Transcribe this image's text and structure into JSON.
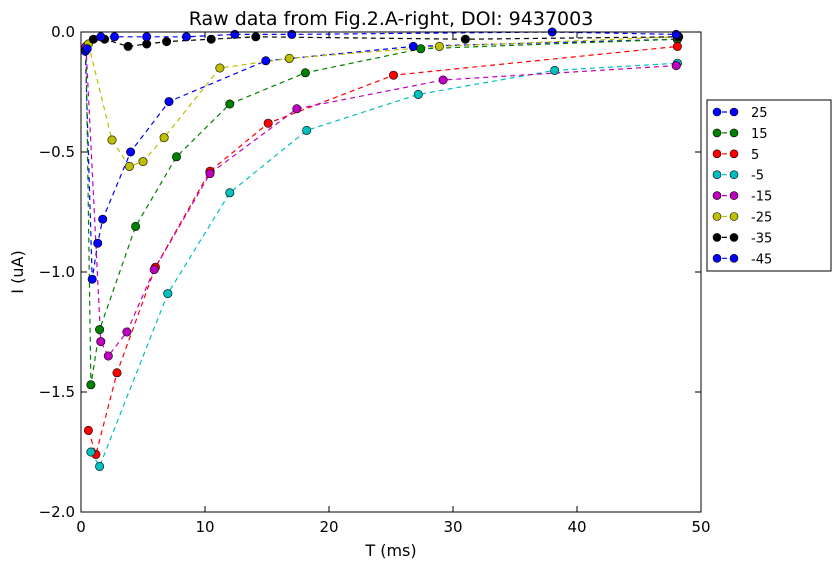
{
  "chart_data": {
    "type": "line",
    "title": "Raw data from Fig.2.A-right, DOI: 9437003",
    "xlabel": "T (ms)",
    "ylabel": "I (uA)",
    "xlim": [
      0,
      50
    ],
    "ylim": [
      -2.0,
      0.0
    ],
    "xticks": [
      0,
      10,
      20,
      30,
      40,
      50
    ],
    "xtick_labels": [
      "0",
      "10",
      "20",
      "30",
      "40",
      "50"
    ],
    "yticks": [
      -2.0,
      -1.5,
      -1.0,
      -0.5,
      0.0
    ],
    "ytick_labels": [
      "−2.0",
      "−1.5",
      "−1.0",
      "−0.5",
      "0.0"
    ],
    "grid": false,
    "legend_position": "right",
    "line_style": "dashed",
    "marker": "circle",
    "series": [
      {
        "name": "25",
        "color": "#0000ff",
        "x": [
          0.35,
          0.9,
          1.35,
          1.75,
          4.0,
          7.1,
          14.9,
          26.8,
          48.1
        ],
        "y": [
          -0.08,
          -1.03,
          -0.88,
          -0.78,
          -0.5,
          -0.29,
          -0.12,
          -0.06,
          -0.03
        ]
      },
      {
        "name": "15",
        "color": "#008000",
        "x": [
          0.4,
          0.8,
          1.5,
          4.4,
          7.7,
          12.0,
          18.1,
          27.4,
          48.1
        ],
        "y": [
          -0.07,
          -1.47,
          -1.24,
          -0.81,
          -0.52,
          -0.3,
          -0.17,
          -0.07,
          -0.03
        ]
      },
      {
        "name": "5",
        "color": "#ff0000",
        "x": [
          0.6,
          1.2,
          2.9,
          6.0,
          10.4,
          15.1,
          25.2,
          48.1
        ],
        "y": [
          -1.66,
          -1.76,
          -1.42,
          -0.98,
          -0.58,
          -0.38,
          -0.18,
          -0.06
        ]
      },
      {
        "name": "-5",
        "color": "#00bfbf",
        "x": [
          0.8,
          1.5,
          7.0,
          12.0,
          18.2,
          27.2,
          38.2,
          48.1
        ],
        "y": [
          -1.75,
          -1.81,
          -1.09,
          -0.67,
          -0.41,
          -0.26,
          -0.16,
          -0.13
        ]
      },
      {
        "name": "-15",
        "color": "#bf00bf",
        "x": [
          0.4,
          1.6,
          2.2,
          3.7,
          5.9,
          10.4,
          17.4,
          29.2,
          48.0
        ],
        "y": [
          -0.06,
          -1.29,
          -1.35,
          -1.25,
          -0.99,
          -0.59,
          -0.32,
          -0.2,
          -0.14
        ]
      },
      {
        "name": "-25",
        "color": "#bfbf00",
        "x": [
          0.6,
          2.5,
          3.9,
          5.0,
          6.7,
          11.2,
          16.8,
          28.9,
          48.1
        ],
        "y": [
          -0.05,
          -0.45,
          -0.56,
          -0.54,
          -0.44,
          -0.15,
          -0.11,
          -0.06,
          -0.02
        ]
      },
      {
        "name": "-35",
        "color": "#000000",
        "x": [
          1.0,
          1.9,
          3.8,
          5.3,
          6.9,
          10.5,
          14.1,
          31.0,
          48.2
        ],
        "y": [
          -0.03,
          -0.03,
          -0.06,
          -0.05,
          -0.04,
          -0.03,
          -0.02,
          -0.03,
          -0.02
        ]
      },
      {
        "name": "-45",
        "color": "#0000ff",
        "x": [
          0.5,
          1.6,
          2.7,
          5.3,
          8.5,
          12.4,
          17.0,
          38.0,
          48.0
        ],
        "y": [
          -0.07,
          -0.02,
          -0.02,
          -0.02,
          -0.02,
          -0.01,
          -0.01,
          0.0,
          -0.01
        ]
      }
    ]
  }
}
